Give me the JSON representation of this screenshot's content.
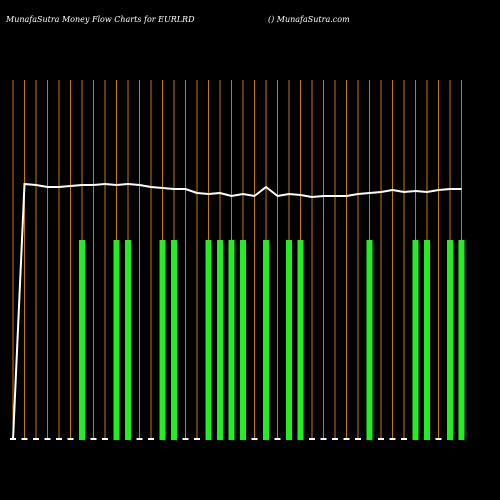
{
  "chart_data": {
    "type": "bar",
    "title": "MunafaSutra  Money Flow  Charts for EURLRD",
    "subtitle": "() MunafaSutra.com",
    "background": "#000000",
    "column_line_color": "#c8740f",
    "ylim": [
      0,
      360
    ],
    "bar_values": [
      2,
      2,
      2,
      2,
      2,
      2,
      200,
      2,
      2,
      200,
      200,
      2,
      2,
      200,
      200,
      2,
      2,
      200,
      200,
      200,
      200,
      2,
      200,
      2,
      200,
      200,
      2,
      2,
      2,
      2,
      2,
      200,
      2,
      2,
      2,
      200,
      200,
      2,
      200,
      200
    ],
    "bar_colors": [
      "#ffffff",
      "#ffffff",
      "#ffffff",
      "#ffffff",
      "#ffffff",
      "#ffffff",
      "#22ee22",
      "#ffffff",
      "#ffffff",
      "#22ee22",
      "#22ee22",
      "#ffffff",
      "#ffffff",
      "#22ee22",
      "#22ee22",
      "#ffffff",
      "#ffffff",
      "#22ee22",
      "#22ee22",
      "#22ee22",
      "#22ee22",
      "#ffffff",
      "#22ee22",
      "#ffffff",
      "#22ee22",
      "#22ee22",
      "#ffffff",
      "#ffffff",
      "#ffffff",
      "#ffffff",
      "#ffffff",
      "#22ee22",
      "#ffffff",
      "#ffffff",
      "#ffffff",
      "#22ee22",
      "#22ee22",
      "#ffffff",
      "#22ee22",
      "#22ee22"
    ],
    "line": {
      "color": "#ffffff",
      "values": [
        0,
        256,
        255,
        253,
        253,
        254,
        255,
        255,
        256,
        255,
        256,
        255,
        253,
        252,
        251,
        251,
        247,
        246,
        247,
        244,
        246,
        244,
        253,
        244,
        246,
        245,
        243,
        244,
        244,
        244,
        246,
        247,
        248,
        250,
        248,
        249,
        248,
        250,
        251,
        251
      ]
    }
  }
}
